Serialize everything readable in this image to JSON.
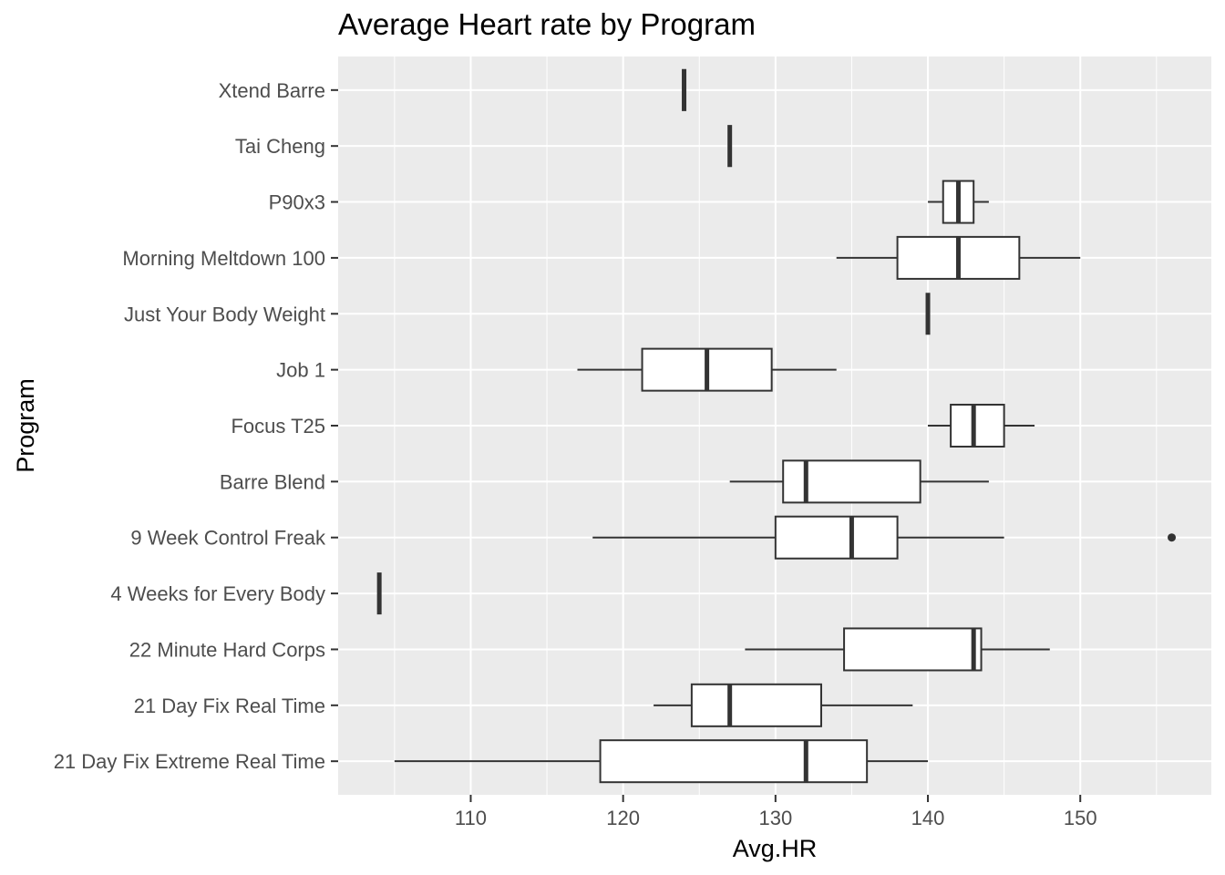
{
  "chart_data": {
    "type": "boxplot",
    "orientation": "horizontal",
    "title": "Average Heart rate by Program",
    "xlabel": "Avg.HR",
    "ylabel": "Program",
    "xlim": [
      101.3,
      158.6
    ],
    "x_ticks": [
      110,
      120,
      130,
      140,
      150
    ],
    "grid": true,
    "colors": {
      "panel": "#ebebeb",
      "grid": "#ffffff",
      "box_stroke": "#333333",
      "box_fill": "#ffffff"
    },
    "categories": [
      "21 Day Fix Extreme Real Time",
      "21 Day Fix Real Time",
      "22 Minute Hard Corps",
      "4 Weeks for Every Body",
      "9 Week Control Freak",
      "Barre Blend",
      "Focus T25",
      "Job 1",
      "Just Your Body Weight",
      "Morning Meltdown 100",
      "P90x3",
      "Tai Cheng",
      "Xtend Barre"
    ],
    "boxes": [
      {
        "program": "21 Day Fix Extreme Real Time",
        "min": 105,
        "q1": 118.5,
        "median": 132,
        "q3": 136,
        "max": 140,
        "outliers": []
      },
      {
        "program": "21 Day Fix Real Time",
        "min": 122,
        "q1": 124.5,
        "median": 127,
        "q3": 133,
        "max": 139,
        "outliers": []
      },
      {
        "program": "22 Minute Hard Corps",
        "min": 128,
        "q1": 134.5,
        "median": 143,
        "q3": 143.5,
        "max": 148,
        "outliers": []
      },
      {
        "program": "4 Weeks for Every Body",
        "min": 104,
        "q1": 104,
        "median": 104,
        "q3": 104,
        "max": 104,
        "outliers": []
      },
      {
        "program": "9 Week Control Freak",
        "min": 118,
        "q1": 130,
        "median": 135,
        "q3": 138,
        "max": 145,
        "outliers": [
          156
        ]
      },
      {
        "program": "Barre Blend",
        "min": 127,
        "q1": 130.5,
        "median": 132,
        "q3": 139.5,
        "max": 144,
        "outliers": []
      },
      {
        "program": "Focus T25",
        "min": 140,
        "q1": 141.5,
        "median": 143,
        "q3": 145,
        "max": 147,
        "outliers": []
      },
      {
        "program": "Job 1",
        "min": 117,
        "q1": 121.25,
        "median": 125.5,
        "q3": 129.75,
        "max": 134,
        "outliers": []
      },
      {
        "program": "Just Your Body Weight",
        "min": 140,
        "q1": 140,
        "median": 140,
        "q3": 140,
        "max": 140,
        "outliers": []
      },
      {
        "program": "Morning Meltdown 100",
        "min": 134,
        "q1": 138,
        "median": 142,
        "q3": 146,
        "max": 150,
        "outliers": []
      },
      {
        "program": "P90x3",
        "min": 140,
        "q1": 141,
        "median": 142,
        "q3": 143,
        "max": 144,
        "outliers": []
      },
      {
        "program": "Tai Cheng",
        "min": 127,
        "q1": 127,
        "median": 127,
        "q3": 127,
        "max": 127,
        "outliers": []
      },
      {
        "program": "Xtend Barre",
        "min": 124,
        "q1": 124,
        "median": 124,
        "q3": 124,
        "max": 124,
        "outliers": []
      }
    ]
  }
}
